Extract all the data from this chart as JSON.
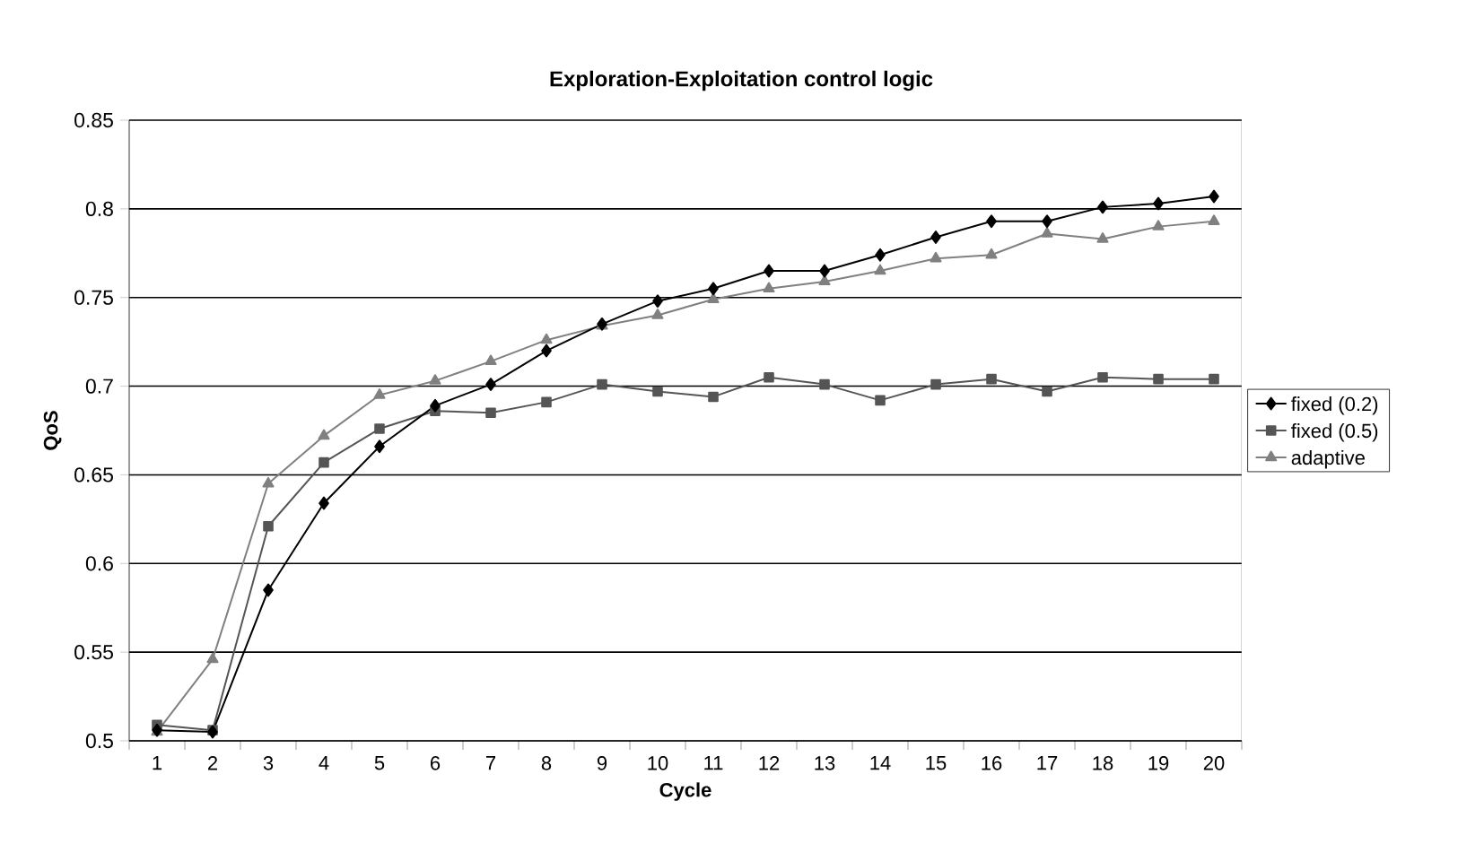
{
  "chart_data": {
    "type": "line",
    "title": "Exploration-Exploitation control logic",
    "xlabel": "Cycle",
    "ylabel": "QoS",
    "categories": [
      "1",
      "2",
      "3",
      "4",
      "5",
      "6",
      "7",
      "8",
      "9",
      "10",
      "11",
      "12",
      "13",
      "14",
      "15",
      "16",
      "17",
      "18",
      "19",
      "20"
    ],
    "ylim": [
      0.5,
      0.85
    ],
    "yticks": [
      0.5,
      0.55,
      0.6,
      0.65,
      0.7,
      0.75,
      0.8,
      0.85
    ],
    "grid": "y",
    "legend": "right",
    "series": [
      {
        "name": "fixed (0.2)",
        "color": "#000000",
        "marker": "diamond",
        "values": [
          0.506,
          0.505,
          0.585,
          0.634,
          0.666,
          0.689,
          0.701,
          0.72,
          0.735,
          0.748,
          0.755,
          0.765,
          0.765,
          0.774,
          0.784,
          0.793,
          0.793,
          0.801,
          0.803,
          0.807
        ]
      },
      {
        "name": "fixed (0.5)",
        "color": "#555555",
        "marker": "square",
        "values": [
          0.509,
          0.506,
          0.621,
          0.657,
          0.676,
          0.686,
          0.685,
          0.691,
          0.701,
          0.697,
          0.694,
          0.705,
          0.701,
          0.692,
          0.701,
          0.704,
          0.697,
          0.705,
          0.704,
          0.704
        ]
      },
      {
        "name": "adaptive",
        "color": "#808080",
        "marker": "triangle",
        "values": [
          0.505,
          0.546,
          0.645,
          0.672,
          0.695,
          0.703,
          0.714,
          0.726,
          0.734,
          0.74,
          0.749,
          0.755,
          0.759,
          0.765,
          0.772,
          0.774,
          0.786,
          0.783,
          0.79,
          0.793
        ]
      }
    ]
  }
}
